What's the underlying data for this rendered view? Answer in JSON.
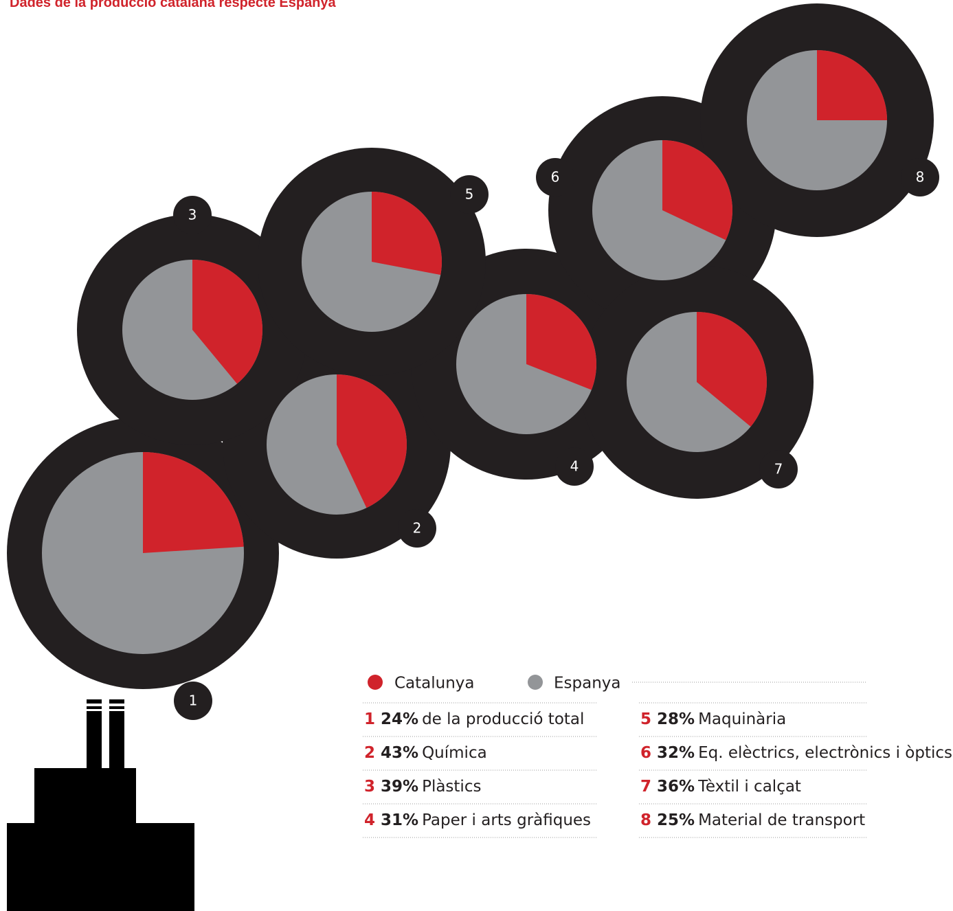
{
  "chart_data": {
    "type": "pie",
    "title": "Dades de la producció catalana respecte Espanya",
    "legend": [
      {
        "name": "Catalunya",
        "color": "#d0232b"
      },
      {
        "name": "Espanya",
        "color": "#939598"
      }
    ],
    "numbers": [
      1,
      2,
      3,
      4,
      5,
      6,
      7,
      8
    ],
    "categories": [
      "de la producció total",
      "Química",
      "Plàstics",
      "Paper i arts gràfiques",
      "Maquinària",
      "Eq. elèctrics, electrònics i òptics",
      "Tèxtil i calçat",
      "Material de transport"
    ],
    "values": [
      24,
      43,
      39,
      31,
      28,
      32,
      36,
      25
    ],
    "value_labels": [
      "24%",
      "43%",
      "39%",
      "31%",
      "28%",
      "32%",
      "36%",
      "25%"
    ]
  }
}
